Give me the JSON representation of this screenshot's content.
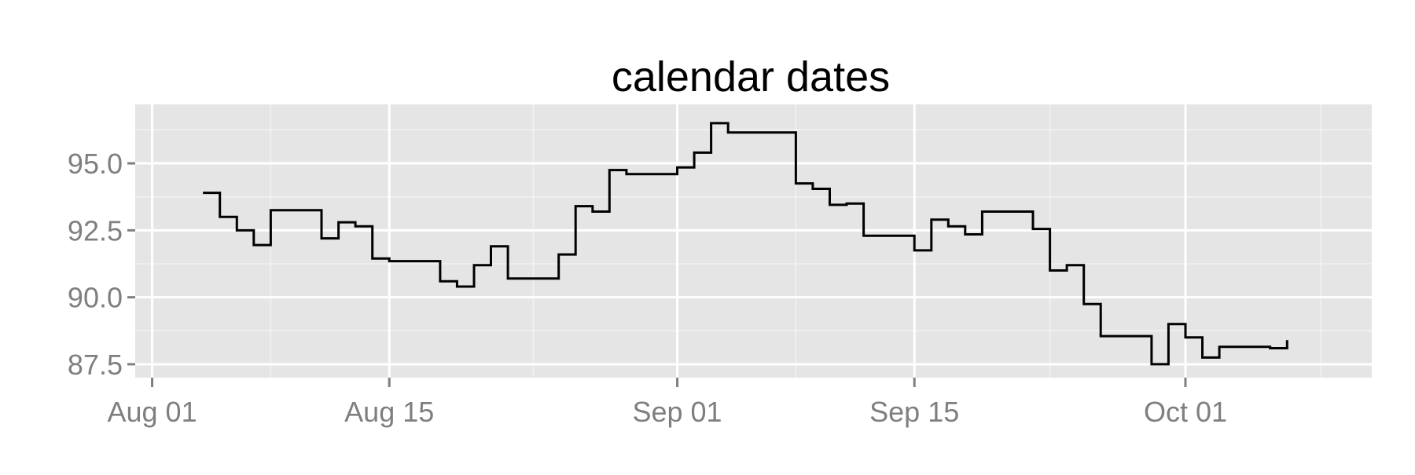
{
  "chart_data": {
    "type": "line",
    "style": "step",
    "title": "calendar dates",
    "xlabel": "",
    "ylabel": "",
    "x_axis": {
      "scale": "date",
      "range": [
        "2013-07-31",
        "2013-10-12"
      ],
      "ticks": [
        "2013-08-01",
        "2013-08-15",
        "2013-09-01",
        "2013-09-15",
        "2013-10-01"
      ],
      "tick_labels": [
        "Aug 01",
        "Aug 15",
        "Sep 01",
        "Sep 15",
        "Oct 01"
      ]
    },
    "y_axis": {
      "range": [
        87.0,
        97.2
      ],
      "ticks": [
        87.5,
        90.0,
        92.5,
        95.0
      ],
      "tick_labels": [
        "87.5",
        "90.0",
        "92.5",
        "95.0"
      ]
    },
    "grid": true,
    "background": "#e5e5e5",
    "gridline_color": "#ffffff",
    "line_color": "#000000",
    "series": [
      {
        "x": [
          "2013-08-04",
          "2013-08-05",
          "2013-08-06",
          "2013-08-07",
          "2013-08-08",
          "2013-08-11",
          "2013-08-12",
          "2013-08-13",
          "2013-08-14",
          "2013-08-15",
          "2013-08-18",
          "2013-08-19",
          "2013-08-20",
          "2013-08-21",
          "2013-08-22",
          "2013-08-25",
          "2013-08-26",
          "2013-08-27",
          "2013-08-28",
          "2013-08-29",
          "2013-09-01",
          "2013-09-02",
          "2013-09-03",
          "2013-09-04",
          "2013-09-05",
          "2013-09-08",
          "2013-09-09",
          "2013-09-10",
          "2013-09-11",
          "2013-09-12",
          "2013-09-15",
          "2013-09-16",
          "2013-09-17",
          "2013-09-18",
          "2013-09-19",
          "2013-09-22",
          "2013-09-23",
          "2013-09-24",
          "2013-09-25",
          "2013-09-26",
          "2013-09-29",
          "2013-09-30",
          "2013-10-01",
          "2013-10-02",
          "2013-10-03",
          "2013-10-06",
          "2013-10-07"
        ],
        "y": [
          93.9,
          93.0,
          92.5,
          91.95,
          93.25,
          92.2,
          92.8,
          92.65,
          91.45,
          91.35,
          90.6,
          90.4,
          91.2,
          91.9,
          90.7,
          91.6,
          93.4,
          93.2,
          94.75,
          94.6,
          94.85,
          95.4,
          96.5,
          96.15,
          96.15,
          94.25,
          94.05,
          93.45,
          93.5,
          92.3,
          91.75,
          92.9,
          92.65,
          92.35,
          93.2,
          92.55,
          91.0,
          91.2,
          89.75,
          88.55,
          87.5,
          89.0,
          88.5,
          87.75,
          88.15,
          88.1,
          88.4
        ]
      }
    ]
  }
}
